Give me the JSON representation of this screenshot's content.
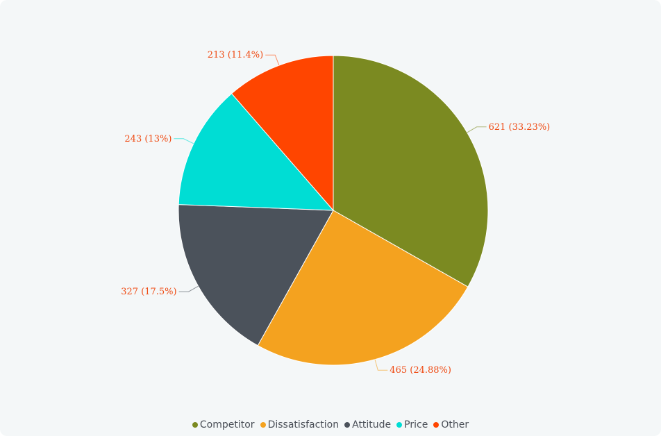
{
  "chart_data": {
    "type": "pie",
    "title": "",
    "categories": [
      "Competitor",
      "Dissatisfaction",
      "Attitude",
      "Price",
      "Other"
    ],
    "values": [
      621,
      465,
      327,
      243,
      213
    ],
    "percentages": [
      33.23,
      24.88,
      17.5,
      13,
      11.4
    ],
    "labels": [
      "621 (33.23%)",
      "465 (24.88%)",
      "327 (17.5%)",
      "243 (13%)",
      "213 (11.4%)"
    ],
    "colors": [
      "#7b8a21",
      "#f4a21f",
      "#4b525b",
      "#00ddd4",
      "#ff4500"
    ],
    "label_color": "#ef4a12",
    "legend_position": "bottom"
  },
  "legend": {
    "items": [
      {
        "label": "Competitor",
        "color": "#7b8a21"
      },
      {
        "label": "Dissatisfaction",
        "color": "#f4a21f"
      },
      {
        "label": "Attitude",
        "color": "#4b525b"
      },
      {
        "label": "Price",
        "color": "#00ddd4"
      },
      {
        "label": "Other",
        "color": "#ff4500"
      }
    ]
  }
}
